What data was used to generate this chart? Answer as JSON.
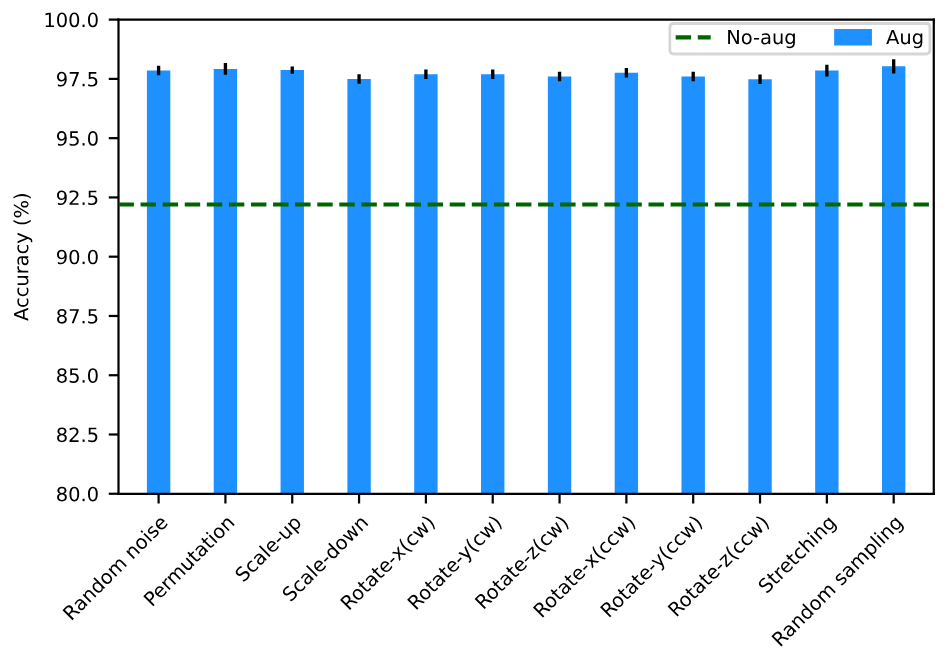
{
  "chart_data": {
    "type": "bar",
    "ylabel": "Accuracy (%)",
    "categories": [
      "Random noise",
      "Permutation",
      "Scale-up",
      "Scale-down",
      "Rotate-x(cw)",
      "Rotate-y(cw)",
      "Rotate-z(cw)",
      "Rotate-x(ccw)",
      "Rotate-y(ccw)",
      "Rotate-z(ccw)",
      "Stretching",
      "Random sampling"
    ],
    "series": [
      {
        "name": "Aug",
        "color": "#1e90ff",
        "values": [
          97.85,
          97.92,
          97.87,
          97.5,
          97.7,
          97.7,
          97.6,
          97.76,
          97.6,
          97.48,
          97.85,
          98.03
        ],
        "errors": [
          0.2,
          0.25,
          0.15,
          0.2,
          0.2,
          0.2,
          0.2,
          0.2,
          0.2,
          0.2,
          0.25,
          0.3
        ]
      }
    ],
    "ref_lines": [
      {
        "axis": "y",
        "value": 92.2,
        "label": "No-aug",
        "color": "#006400",
        "line_style": "dashed"
      }
    ],
    "ylim": [
      80,
      100
    ],
    "yticks": [
      {
        "value": 80,
        "label": "80.0"
      },
      {
        "value": 82.5,
        "label": "82.5"
      },
      {
        "value": 85,
        "label": "85.0"
      },
      {
        "value": 87.5,
        "label": "87.5"
      },
      {
        "value": 90,
        "label": "90.0"
      },
      {
        "value": 92.5,
        "label": "92.5"
      },
      {
        "value": 95,
        "label": "95.0"
      },
      {
        "value": 97.5,
        "label": "97.5"
      },
      {
        "value": 100,
        "label": "100.0"
      }
    ],
    "legend": "top right",
    "grid": false
  }
}
